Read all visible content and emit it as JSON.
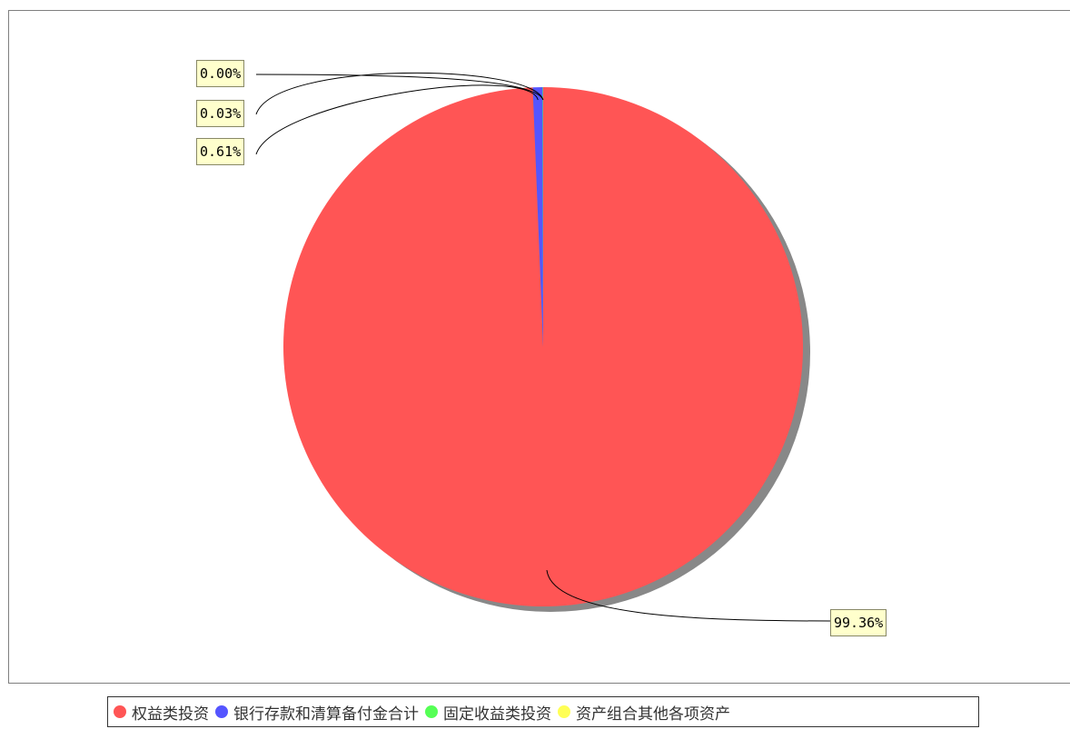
{
  "chart_data": {
    "type": "pie",
    "title": "",
    "legend_position": "bottom",
    "slices": [
      {
        "name": "权益类投资",
        "value": 99.36,
        "label": "99.36%",
        "color": "#ff5555"
      },
      {
        "name": "银行存款和清算备付金合计",
        "value": 0.61,
        "label": "0.61%",
        "color": "#5555ff"
      },
      {
        "name": "固定收益类投资",
        "value": 0.03,
        "label": "0.03%",
        "color": "#55ff55"
      },
      {
        "name": "资产组合其他各项资产",
        "value": 0.0,
        "label": "0.00%",
        "color": "#ffff55"
      }
    ]
  }
}
